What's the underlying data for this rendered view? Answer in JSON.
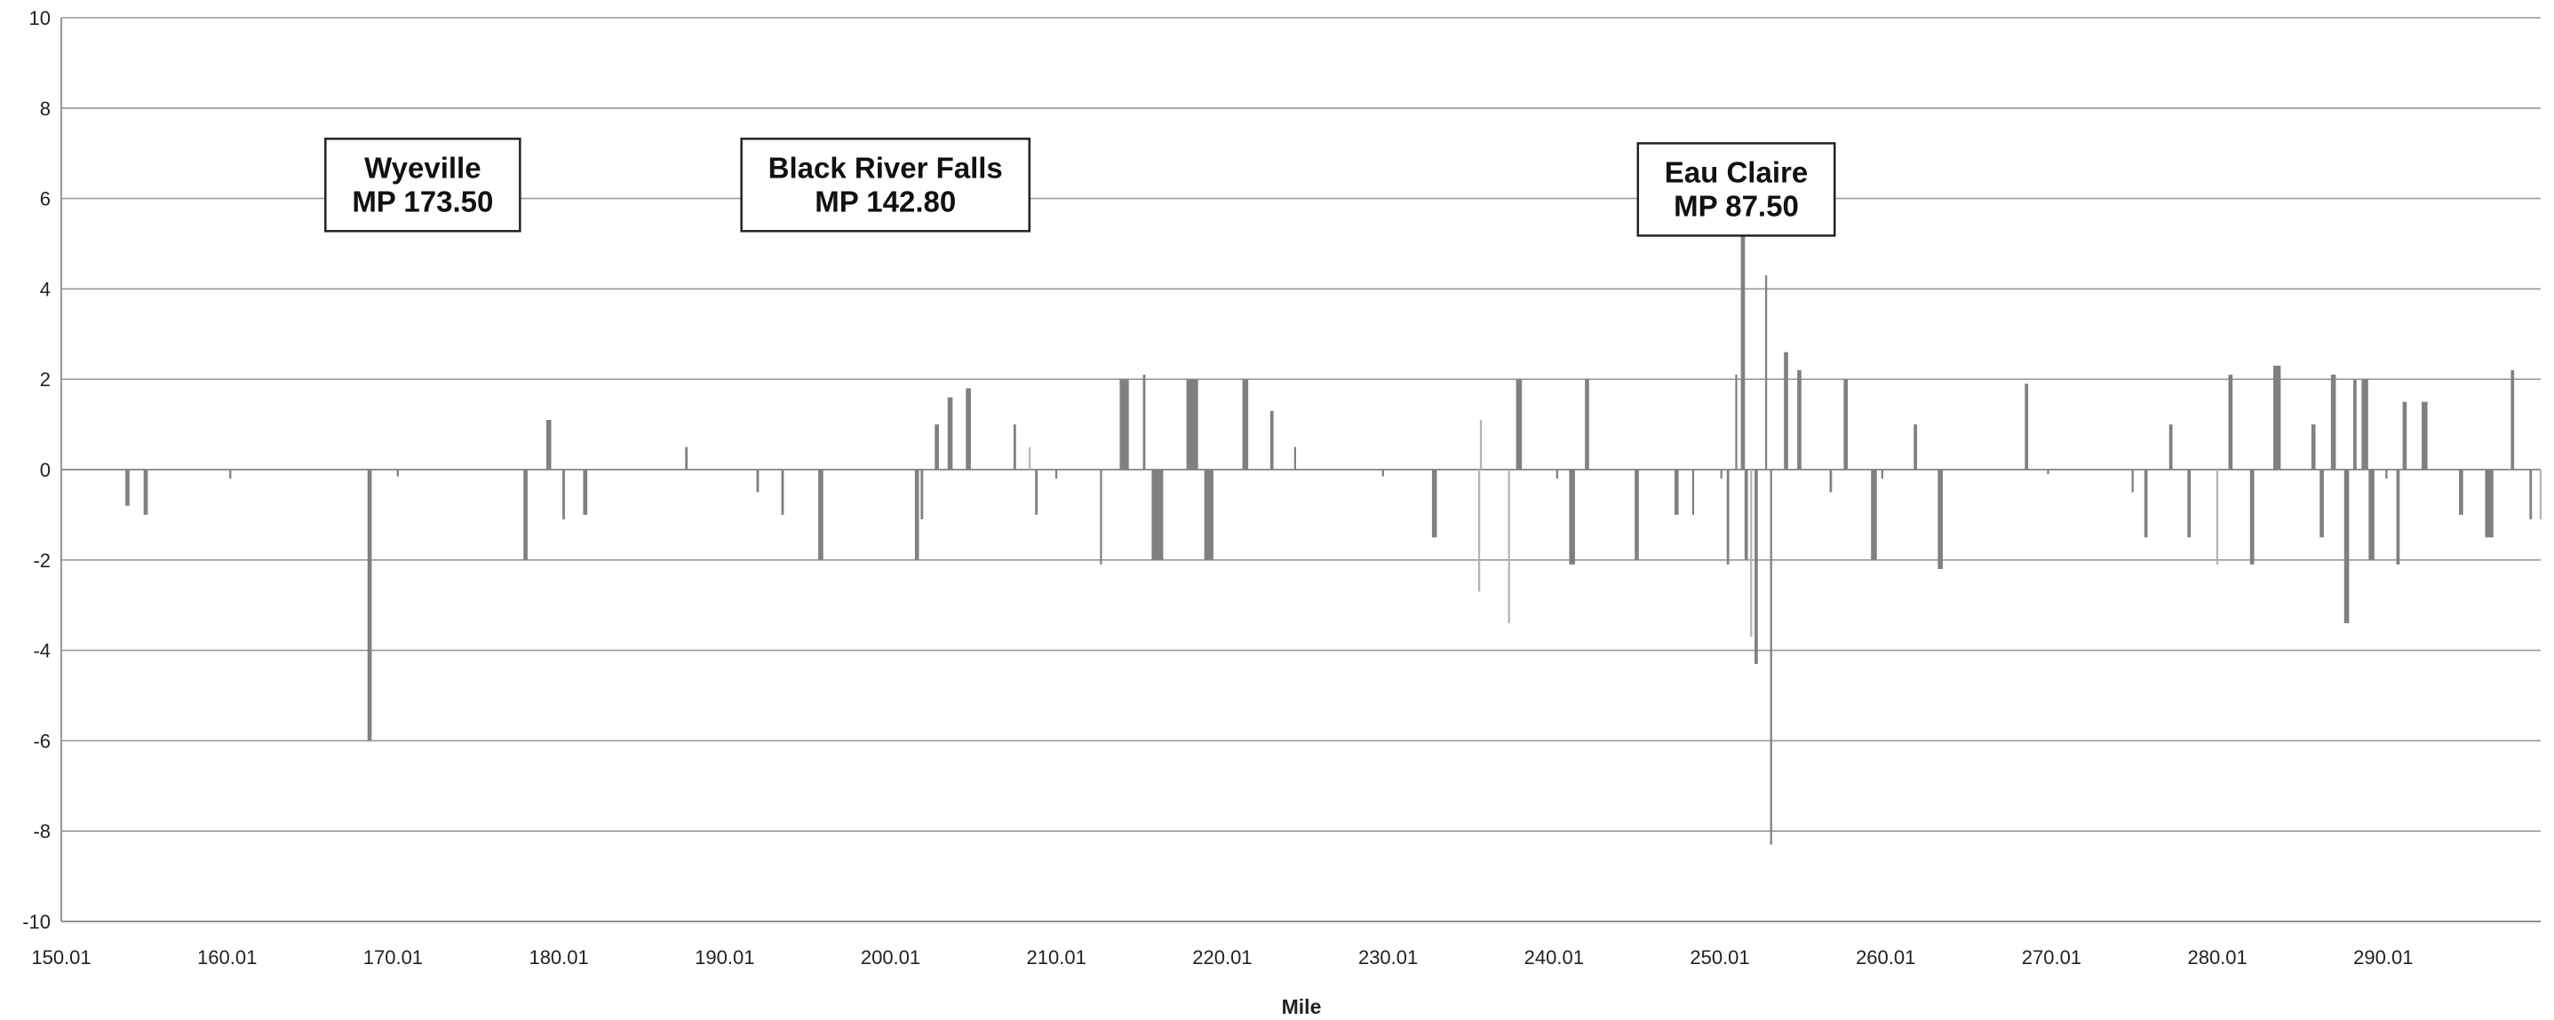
{
  "colors": {
    "bar": "#808080",
    "bar_light": "#b3b3b3",
    "grid": "#999999",
    "axis": "#7f7f7f"
  },
  "chart_data": {
    "type": "bar",
    "xlabel": "Mile",
    "ylabel": "",
    "xlim": [
      150.01,
      299.5
    ],
    "ylim": [
      -10,
      10
    ],
    "grid": "horizontal",
    "legend": "none",
    "x_tick_labels": [
      "150.01",
      "160.01",
      "170.01",
      "180.01",
      "190.01",
      "200.01",
      "210.01",
      "220.01",
      "230.01",
      "240.01",
      "250.01",
      "260.01",
      "270.01",
      "280.01",
      "290.01"
    ],
    "y_tick_labels": [
      "10",
      "8",
      "6",
      "4",
      "2",
      "0",
      "-2",
      "-4",
      "-6",
      "-8",
      "-10"
    ],
    "annotations": [
      {
        "lines": [
          "Wyeville",
          "MP 173.50"
        ],
        "x": 171.8,
        "y": 6.3
      },
      {
        "lines": [
          "Black River Falls",
          "MP 142.80"
        ],
        "x": 199.7,
        "y": 6.3
      },
      {
        "lines": [
          "Eau Claire",
          "MP 87.50"
        ],
        "x": 251.0,
        "y": 6.2
      }
    ],
    "points": [
      {
        "x": 154.0,
        "y": -0.8,
        "w": 0.25
      },
      {
        "x": 155.1,
        "y": -1.0,
        "w": 0.25
      },
      {
        "x": 160.2,
        "y": -0.2,
        "w": 0.12
      },
      {
        "x": 168.6,
        "y": -6.0,
        "w": 0.25
      },
      {
        "x": 170.3,
        "y": -0.15,
        "w": 0.12
      },
      {
        "x": 178.0,
        "y": -2.0,
        "w": 0.25
      },
      {
        "x": 179.4,
        "y": 1.1,
        "w": 0.3
      },
      {
        "x": 180.3,
        "y": -1.1,
        "w": 0.15
      },
      {
        "x": 181.6,
        "y": -1.0,
        "w": 0.25
      },
      {
        "x": 187.7,
        "y": 0.5,
        "w": 0.15
      },
      {
        "x": 192.0,
        "y": -0.5,
        "w": 0.15
      },
      {
        "x": 193.5,
        "y": -1.0,
        "w": 0.15
      },
      {
        "x": 195.8,
        "y": -2.0,
        "w": 0.3
      },
      {
        "x": 201.6,
        "y": -2.0,
        "w": 0.25
      },
      {
        "x": 201.9,
        "y": -1.1,
        "w": 0.15
      },
      {
        "x": 202.8,
        "y": 1.0,
        "w": 0.25
      },
      {
        "x": 203.6,
        "y": 1.6,
        "w": 0.3
      },
      {
        "x": 204.7,
        "y": 1.8,
        "w": 0.3
      },
      {
        "x": 207.5,
        "y": 1.0,
        "w": 0.15
      },
      {
        "x": 208.4,
        "y": 0.5,
        "w": 0.1,
        "light": true
      },
      {
        "x": 208.8,
        "y": -1.0,
        "w": 0.15
      },
      {
        "x": 210.0,
        "y": -0.2,
        "w": 0.12
      },
      {
        "x": 212.7,
        "y": -2.1,
        "w": 0.12
      },
      {
        "x": 214.1,
        "y": 2.0,
        "w": 0.55
      },
      {
        "x": 215.3,
        "y": 2.1,
        "w": 0.15
      },
      {
        "x": 216.1,
        "y": -2.0,
        "w": 0.7
      },
      {
        "x": 218.2,
        "y": 2.0,
        "w": 0.7
      },
      {
        "x": 219.2,
        "y": -2.0,
        "w": 0.55
      },
      {
        "x": 221.4,
        "y": 2.0,
        "w": 0.35
      },
      {
        "x": 223.0,
        "y": 1.3,
        "w": 0.2
      },
      {
        "x": 224.4,
        "y": 0.5,
        "w": 0.12
      },
      {
        "x": 229.7,
        "y": -0.15,
        "w": 0.12
      },
      {
        "x": 232.8,
        "y": -1.5,
        "w": 0.3
      },
      {
        "x": 235.5,
        "y": -2.7,
        "w": 0.12,
        "light": true
      },
      {
        "x": 235.6,
        "y": 1.1,
        "w": 0.12,
        "light": true
      },
      {
        "x": 237.3,
        "y": -3.4,
        "w": 0.12,
        "light": true
      },
      {
        "x": 237.9,
        "y": 2.0,
        "w": 0.35
      },
      {
        "x": 240.2,
        "y": -0.2,
        "w": 0.12
      },
      {
        "x": 241.1,
        "y": -2.1,
        "w": 0.35
      },
      {
        "x": 242.0,
        "y": 2.0,
        "w": 0.25
      },
      {
        "x": 245.0,
        "y": -2.0,
        "w": 0.25
      },
      {
        "x": 247.4,
        "y": -1.0,
        "w": 0.25
      },
      {
        "x": 248.4,
        "y": -1.0,
        "w": 0.12
      },
      {
        "x": 250.1,
        "y": -0.2,
        "w": 0.12
      },
      {
        "x": 250.5,
        "y": -2.1,
        "w": 0.15
      },
      {
        "x": 251.0,
        "y": 2.1,
        "w": 0.12
      },
      {
        "x": 251.4,
        "y": 6.0,
        "w": 0.25
      },
      {
        "x": 251.6,
        "y": -2.0,
        "w": 0.2
      },
      {
        "x": 251.9,
        "y": -3.7,
        "w": 0.12,
        "light": true
      },
      {
        "x": 252.2,
        "y": -4.3,
        "w": 0.2
      },
      {
        "x": 252.8,
        "y": 4.3,
        "w": 0.12
      },
      {
        "x": 253.1,
        "y": -8.3,
        "w": 0.12
      },
      {
        "x": 254.0,
        "y": 2.6,
        "w": 0.25
      },
      {
        "x": 254.8,
        "y": 2.2,
        "w": 0.25
      },
      {
        "x": 256.7,
        "y": -0.5,
        "w": 0.15
      },
      {
        "x": 257.6,
        "y": 2.0,
        "w": 0.25
      },
      {
        "x": 259.3,
        "y": -2.0,
        "w": 0.35
      },
      {
        "x": 259.8,
        "y": -0.2,
        "w": 0.12
      },
      {
        "x": 261.8,
        "y": 1.0,
        "w": 0.2
      },
      {
        "x": 263.3,
        "y": -2.2,
        "w": 0.3
      },
      {
        "x": 268.5,
        "y": 1.9,
        "w": 0.2
      },
      {
        "x": 269.8,
        "y": -0.1,
        "w": 0.12
      },
      {
        "x": 274.9,
        "y": -0.5,
        "w": 0.12
      },
      {
        "x": 275.7,
        "y": -1.5,
        "w": 0.2
      },
      {
        "x": 277.2,
        "y": 1.0,
        "w": 0.2
      },
      {
        "x": 278.3,
        "y": -1.5,
        "w": 0.2
      },
      {
        "x": 280.0,
        "y": -2.1,
        "w": 0.12,
        "light": true
      },
      {
        "x": 280.8,
        "y": 2.1,
        "w": 0.25
      },
      {
        "x": 282.1,
        "y": -2.1,
        "w": 0.25
      },
      {
        "x": 283.6,
        "y": 2.3,
        "w": 0.45
      },
      {
        "x": 285.8,
        "y": 1.0,
        "w": 0.25
      },
      {
        "x": 286.3,
        "y": -1.5,
        "w": 0.25
      },
      {
        "x": 287.0,
        "y": 2.1,
        "w": 0.3
      },
      {
        "x": 287.8,
        "y": -3.4,
        "w": 0.3
      },
      {
        "x": 288.3,
        "y": 2.0,
        "w": 0.2
      },
      {
        "x": 288.9,
        "y": 2.0,
        "w": 0.4
      },
      {
        "x": 289.3,
        "y": -2.0,
        "w": 0.35
      },
      {
        "x": 290.2,
        "y": -0.2,
        "w": 0.12
      },
      {
        "x": 290.9,
        "y": -2.1,
        "w": 0.2
      },
      {
        "x": 291.3,
        "y": 1.5,
        "w": 0.25
      },
      {
        "x": 292.5,
        "y": 1.5,
        "w": 0.35
      },
      {
        "x": 294.7,
        "y": -1.0,
        "w": 0.25
      },
      {
        "x": 296.4,
        "y": -1.5,
        "w": 0.5
      },
      {
        "x": 297.8,
        "y": 2.2,
        "w": 0.2
      },
      {
        "x": 298.9,
        "y": -1.1,
        "w": 0.15
      },
      {
        "x": 299.5,
        "y": -1.1,
        "w": 0.12,
        "light": true
      }
    ]
  }
}
